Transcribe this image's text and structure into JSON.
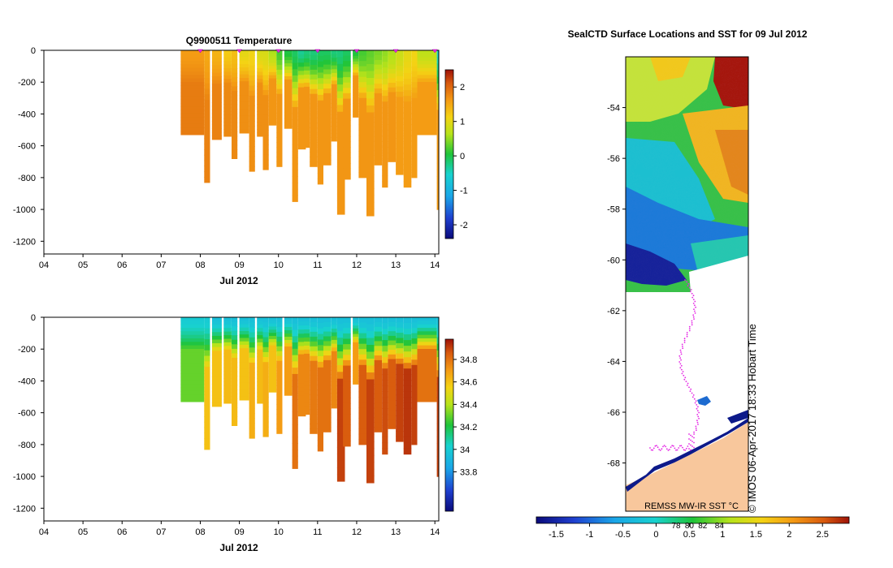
{
  "chart_data": [
    {
      "type": "heatmap",
      "id": "temperature",
      "title": "Q9900511  Temperature",
      "xlabel": "Jul 2012",
      "ylabel": "",
      "xticks": [
        "04",
        "05",
        "06",
        "07",
        "08",
        "09",
        "10",
        "11",
        "12",
        "13",
        "14"
      ],
      "xlim": [
        4,
        14.1
      ],
      "ylim": [
        -1280,
        0
      ],
      "yticks": [
        0,
        -200,
        -400,
        -600,
        -800,
        -1000,
        -1200
      ],
      "colorbar": {
        "range": [
          -2.4,
          2.5
        ],
        "ticks": [
          -2,
          -1,
          0,
          1,
          2
        ]
      },
      "profile_markers": [
        8.0,
        9.0,
        10.0,
        11.0,
        12.0,
        13.0,
        14.0
      ],
      "profiles": [
        {
          "x": 7.5,
          "w": 0.6,
          "depth": -530,
          "surface": 1.6,
          "deep": 1.85
        },
        {
          "x": 8.1,
          "w": 0.15,
          "depth": -830,
          "surface": 1.5,
          "deep": 1.8
        },
        {
          "x": 8.3,
          "w": 0.25,
          "depth": -560,
          "surface": 1.4,
          "deep": 1.8
        },
        {
          "x": 8.6,
          "w": 0.2,
          "depth": -540,
          "surface": 1.2,
          "deep": 1.75
        },
        {
          "x": 8.8,
          "w": 0.15,
          "depth": -680,
          "surface": 1.3,
          "deep": 1.75
        },
        {
          "x": 9.0,
          "w": 0.25,
          "depth": -520,
          "surface": 1.0,
          "deep": 1.7
        },
        {
          "x": 9.25,
          "w": 0.15,
          "depth": -760,
          "surface": 1.1,
          "deep": 1.7
        },
        {
          "x": 9.45,
          "w": 0.2,
          "depth": -540,
          "surface": 0.9,
          "deep": 1.7
        },
        {
          "x": 9.6,
          "w": 0.15,
          "depth": -750,
          "surface": 0.9,
          "deep": 1.7
        },
        {
          "x": 9.75,
          "w": 0.2,
          "depth": -470,
          "surface": 0.6,
          "deep": 1.65
        },
        {
          "x": 9.95,
          "w": 0.15,
          "depth": -730,
          "surface": 0.2,
          "deep": 1.65
        },
        {
          "x": 10.15,
          "w": 0.2,
          "depth": -490,
          "surface": 0.0,
          "deep": 1.65
        },
        {
          "x": 10.35,
          "w": 0.15,
          "depth": -950,
          "surface": -0.1,
          "deep": 1.65
        },
        {
          "x": 10.5,
          "w": 0.2,
          "depth": -620,
          "surface": -0.3,
          "deep": 1.65
        },
        {
          "x": 10.65,
          "w": 0.15,
          "depth": -610,
          "surface": -0.2,
          "deep": 1.65
        },
        {
          "x": 10.8,
          "w": 0.2,
          "depth": -730,
          "surface": -0.2,
          "deep": 1.65
        },
        {
          "x": 11.0,
          "w": 0.15,
          "depth": -840,
          "surface": -0.1,
          "deep": 1.65
        },
        {
          "x": 11.15,
          "w": 0.2,
          "depth": -720,
          "surface": -0.1,
          "deep": 1.65
        },
        {
          "x": 11.35,
          "w": 0.15,
          "depth": -570,
          "surface": -0.2,
          "deep": 1.65
        },
        {
          "x": 11.5,
          "w": 0.2,
          "depth": -1030,
          "surface": -0.2,
          "deep": 1.65
        },
        {
          "x": 11.65,
          "w": 0.2,
          "depth": -810,
          "surface": -0.1,
          "deep": 1.65
        },
        {
          "x": 11.9,
          "w": 0.15,
          "depth": -420,
          "surface": 0.0,
          "deep": 1.65
        },
        {
          "x": 12.05,
          "w": 0.2,
          "depth": -800,
          "surface": 0.2,
          "deep": 1.65
        },
        {
          "x": 12.25,
          "w": 0.2,
          "depth": -1040,
          "surface": 0.3,
          "deep": 1.65
        },
        {
          "x": 12.45,
          "w": 0.2,
          "depth": -720,
          "surface": 0.4,
          "deep": 1.65
        },
        {
          "x": 12.65,
          "w": 0.15,
          "depth": -860,
          "surface": 0.5,
          "deep": 1.65
        },
        {
          "x": 12.8,
          "w": 0.2,
          "depth": -700,
          "surface": 0.6,
          "deep": 1.65
        },
        {
          "x": 13.0,
          "w": 0.2,
          "depth": -780,
          "surface": 0.8,
          "deep": 1.6
        },
        {
          "x": 13.2,
          "w": 0.2,
          "depth": -860,
          "surface": 1.0,
          "deep": 1.6
        },
        {
          "x": 13.4,
          "w": 0.15,
          "depth": -800,
          "surface": 1.1,
          "deep": 1.6
        },
        {
          "x": 13.55,
          "w": 0.5,
          "depth": -530,
          "surface": 0.7,
          "deep": 1.6
        },
        {
          "x": 14.05,
          "w": 0.05,
          "depth": -1000,
          "surface": -0.5,
          "deep": 1.6
        }
      ]
    },
    {
      "type": "heatmap",
      "id": "salinity",
      "title": "",
      "xlabel": "Jul 2012",
      "xticks": [
        "04",
        "05",
        "06",
        "07",
        "08",
        "09",
        "10",
        "11",
        "12",
        "13",
        "14"
      ],
      "xlim": [
        4,
        14.1
      ],
      "ylim": [
        -1280,
        0
      ],
      "yticks": [
        0,
        -200,
        -400,
        -600,
        -800,
        -1000,
        -1200
      ],
      "colorbar": {
        "range": [
          33.45,
          34.98
        ],
        "ticks": [
          33.8,
          34,
          34.2,
          34.4,
          34.6,
          34.8
        ]
      },
      "profile_markers": [],
      "profiles": [
        {
          "x": 7.5,
          "w": 0.6,
          "depth": -530,
          "surface": 34.0,
          "deep": 34.3
        },
        {
          "x": 8.1,
          "w": 0.15,
          "depth": -830,
          "surface": 34.0,
          "deep": 34.6
        },
        {
          "x": 8.3,
          "w": 0.25,
          "depth": -560,
          "surface": 33.95,
          "deep": 34.6
        },
        {
          "x": 8.6,
          "w": 0.2,
          "depth": -540,
          "surface": 33.95,
          "deep": 34.62
        },
        {
          "x": 8.8,
          "w": 0.15,
          "depth": -680,
          "surface": 33.95,
          "deep": 34.62
        },
        {
          "x": 9.0,
          "w": 0.25,
          "depth": -520,
          "surface": 33.95,
          "deep": 34.6
        },
        {
          "x": 9.25,
          "w": 0.15,
          "depth": -760,
          "surface": 33.95,
          "deep": 34.65
        },
        {
          "x": 9.45,
          "w": 0.2,
          "depth": -540,
          "surface": 33.95,
          "deep": 34.62
        },
        {
          "x": 9.6,
          "w": 0.15,
          "depth": -750,
          "surface": 33.95,
          "deep": 34.65
        },
        {
          "x": 9.75,
          "w": 0.2,
          "depth": -470,
          "surface": 33.95,
          "deep": 34.6
        },
        {
          "x": 9.95,
          "w": 0.15,
          "depth": -730,
          "surface": 33.95,
          "deep": 34.7
        },
        {
          "x": 10.15,
          "w": 0.2,
          "depth": -490,
          "surface": 33.95,
          "deep": 34.7
        },
        {
          "x": 10.35,
          "w": 0.15,
          "depth": -950,
          "surface": 33.95,
          "deep": 34.8
        },
        {
          "x": 10.5,
          "w": 0.2,
          "depth": -620,
          "surface": 33.95,
          "deep": 34.75
        },
        {
          "x": 10.65,
          "w": 0.15,
          "depth": -610,
          "surface": 33.95,
          "deep": 34.75
        },
        {
          "x": 10.8,
          "w": 0.2,
          "depth": -730,
          "surface": 33.95,
          "deep": 34.78
        },
        {
          "x": 11.0,
          "w": 0.15,
          "depth": -840,
          "surface": 33.95,
          "deep": 34.8
        },
        {
          "x": 11.15,
          "w": 0.2,
          "depth": -720,
          "surface": 33.95,
          "deep": 34.8
        },
        {
          "x": 11.35,
          "w": 0.15,
          "depth": -570,
          "surface": 33.95,
          "deep": 34.75
        },
        {
          "x": 11.5,
          "w": 0.2,
          "depth": -1030,
          "surface": 33.95,
          "deep": 34.9
        },
        {
          "x": 11.65,
          "w": 0.2,
          "depth": -810,
          "surface": 33.95,
          "deep": 34.85
        },
        {
          "x": 11.9,
          "w": 0.15,
          "depth": -420,
          "surface": 33.95,
          "deep": 34.7
        },
        {
          "x": 12.05,
          "w": 0.2,
          "depth": -800,
          "surface": 33.95,
          "deep": 34.85
        },
        {
          "x": 12.25,
          "w": 0.2,
          "depth": -1040,
          "surface": 33.95,
          "deep": 34.9
        },
        {
          "x": 12.45,
          "w": 0.2,
          "depth": -720,
          "surface": 33.95,
          "deep": 34.85
        },
        {
          "x": 12.65,
          "w": 0.15,
          "depth": -860,
          "surface": 33.95,
          "deep": 34.88
        },
        {
          "x": 12.8,
          "w": 0.2,
          "depth": -700,
          "surface": 33.95,
          "deep": 34.85
        },
        {
          "x": 13.0,
          "w": 0.2,
          "depth": -780,
          "surface": 33.95,
          "deep": 34.9
        },
        {
          "x": 13.2,
          "w": 0.2,
          "depth": -860,
          "surface": 33.95,
          "deep": 34.92
        },
        {
          "x": 13.4,
          "w": 0.15,
          "depth": -800,
          "surface": 33.95,
          "deep": 34.9
        },
        {
          "x": 13.55,
          "w": 0.5,
          "depth": -530,
          "surface": 33.95,
          "deep": 34.8
        },
        {
          "x": 14.05,
          "w": 0.05,
          "depth": -1000,
          "surface": 33.95,
          "deep": 34.9
        }
      ]
    },
    {
      "type": "heatmap",
      "id": "sst-map",
      "title": "SealCTD Surface Locations and SST for 09 Jul 2012",
      "ylabel": "",
      "yticks": [
        -54,
        -56,
        -58,
        -60,
        -62,
        -64,
        -66,
        -68
      ],
      "ylim": [
        -69.9,
        -52.0
      ],
      "colorbar": {
        "range": [
          -1.8,
          2.9
        ],
        "ticks": [
          -1.5,
          -1,
          -0.5,
          0,
          0.5,
          1,
          1.5,
          2,
          2.5
        ],
        "sub_labels": [
          "78",
          "80",
          "82",
          "84"
        ]
      },
      "product_label": "REMSS MW-IR SST °C",
      "watermark": "© IMOS 06-Apr-2017 18:33 Hobart Time"
    }
  ]
}
